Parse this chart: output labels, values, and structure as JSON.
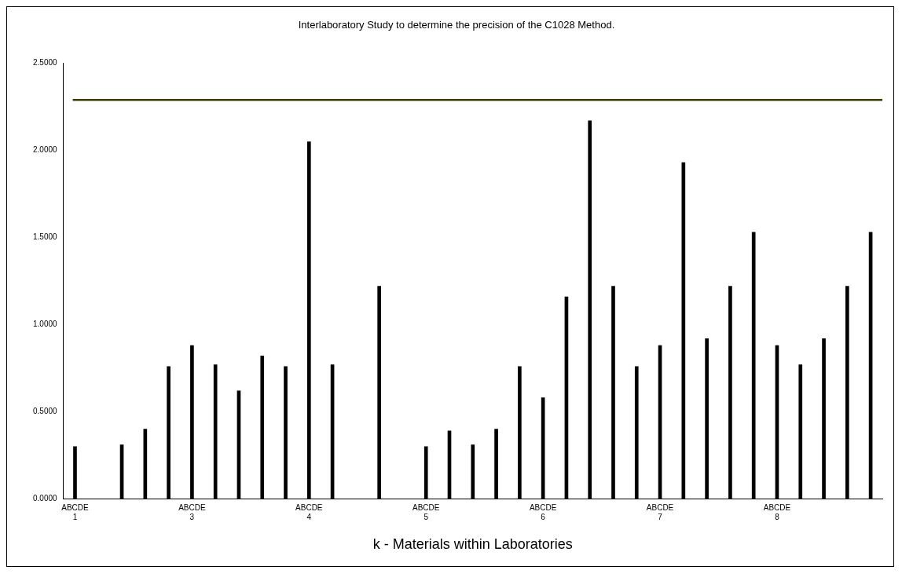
{
  "chart_data": {
    "type": "bar",
    "title": "Interlaboratory Study to determine the precision of the C1028 Method.",
    "xlabel": "k - Materials within Laboratories",
    "categories": [
      "ABCDE\n1",
      null,
      null,
      null,
      null,
      "ABCDE\n3",
      null,
      null,
      null,
      null,
      "ABCDE\n4",
      null,
      null,
      null,
      null,
      "ABCDE\n5",
      null,
      null,
      null,
      null,
      "ABCDE\n6",
      null,
      null,
      null,
      null,
      "ABCDE\n7",
      null,
      null,
      null,
      null,
      "ABCDE\n8",
      null,
      null,
      null,
      null
    ],
    "values": [
      0.3,
      null,
      0.31,
      0.4,
      0.76,
      0.88,
      0.77,
      0.62,
      0.82,
      0.76,
      2.05,
      0.77,
      null,
      1.22,
      null,
      0.3,
      0.39,
      0.31,
      0.4,
      0.76,
      0.58,
      1.16,
      2.17,
      1.22,
      0.76,
      0.88,
      1.93,
      0.92,
      1.22,
      1.53,
      0.88,
      0.77,
      0.92,
      1.22,
      1.53
    ],
    "color": "#000000",
    "ylim": [
      0,
      2.5
    ],
    "yticks": [
      {
        "value": 0,
        "label": "0.0000"
      },
      {
        "value": 0.5,
        "label": "0.5000"
      },
      {
        "value": 1,
        "label": "1.0000"
      },
      {
        "value": 1.5,
        "label": "1.5000"
      },
      {
        "value": 2,
        "label": "2.0000"
      },
      {
        "value": 2.5,
        "label": "2.5000"
      }
    ],
    "ref_lines": [
      {
        "axis": "y",
        "value": 2.29,
        "color": "#3a3a00"
      }
    ],
    "grid": false,
    "legend": false
  }
}
